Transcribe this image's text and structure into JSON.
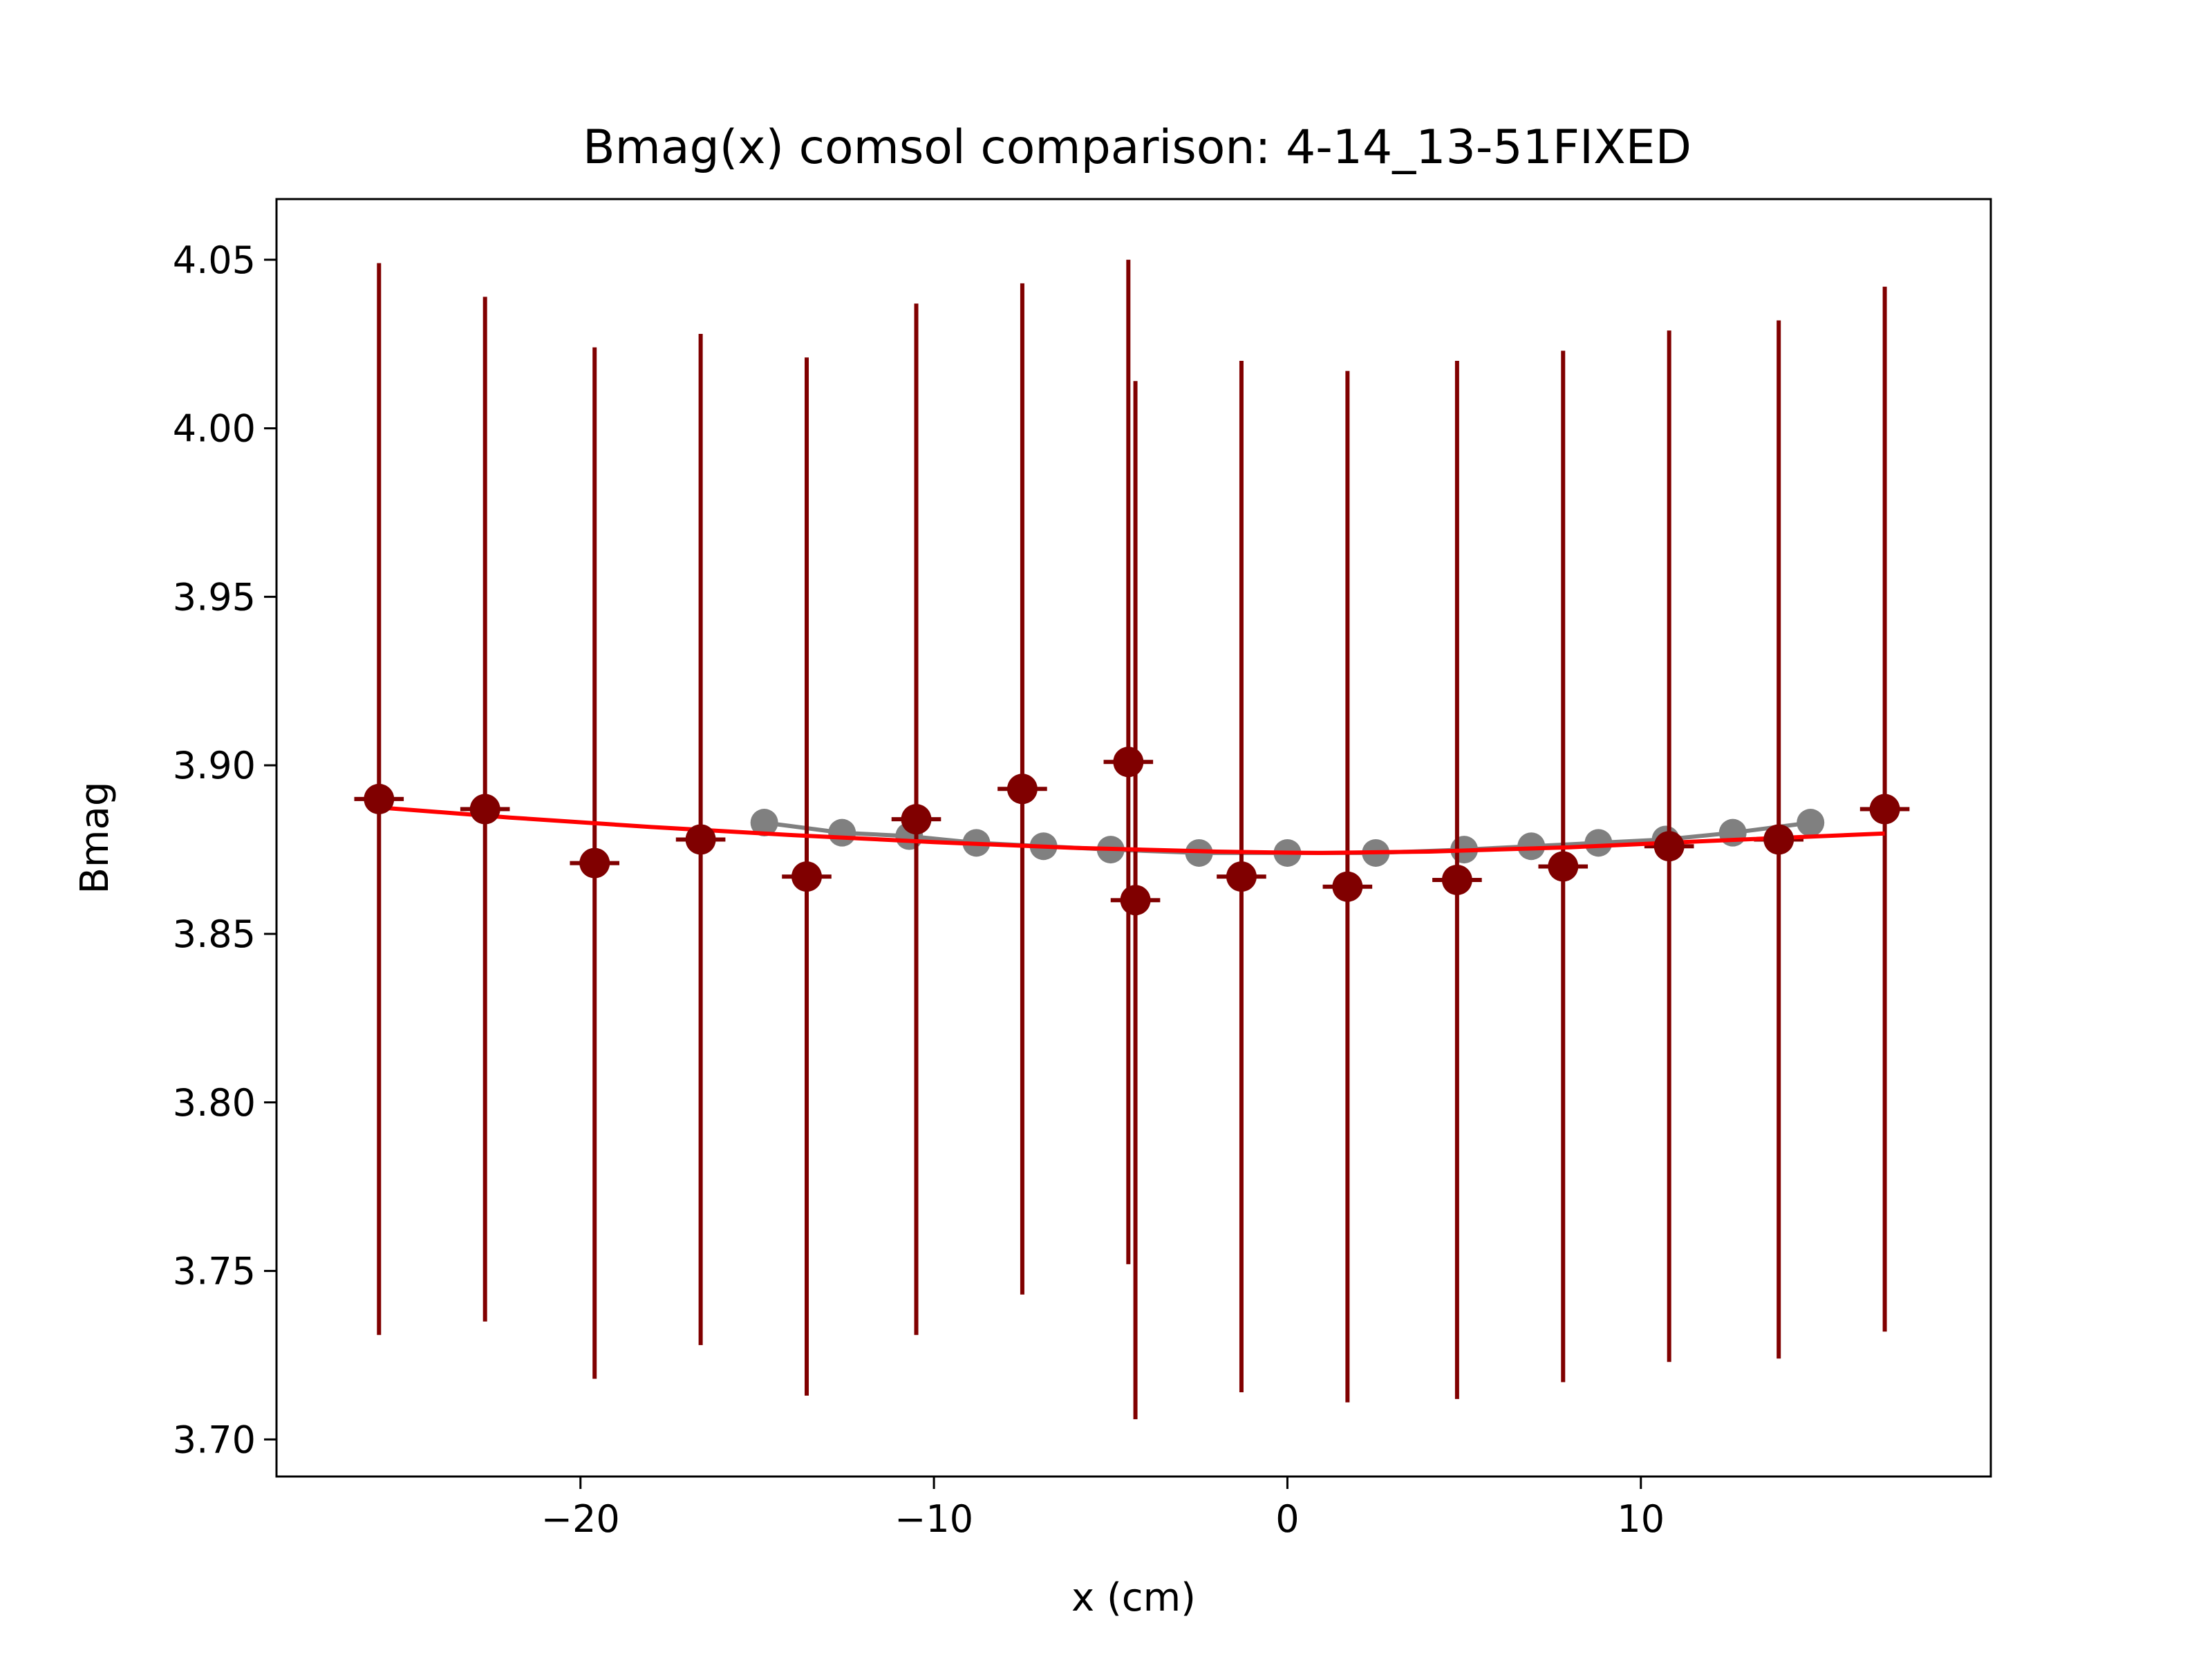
{
  "chart_data": {
    "type": "scatter",
    "title": "Bmag(x) comsol comparison: 4-14_13-51FIXED",
    "xlabel": "x (cm)",
    "ylabel": "Bmag",
    "xlim": [
      -28.6,
      19.9
    ],
    "ylim": [
      3.689,
      4.068
    ],
    "xticks": [
      -20,
      -10,
      0,
      10
    ],
    "xtick_labels": [
      "−20",
      "−10",
      "0",
      "10"
    ],
    "yticks": [
      3.7,
      3.75,
      3.8,
      3.85,
      3.9,
      3.95,
      4.0,
      4.05
    ],
    "ytick_labels": [
      "3.70",
      "3.75",
      "3.80",
      "3.85",
      "3.90",
      "3.95",
      "4.00",
      "4.05"
    ],
    "grid": false,
    "legend": null,
    "series": [
      {
        "kind": "line-with-markers",
        "color": "#808080",
        "x": [
          -14.8,
          -12.6,
          -10.7,
          -8.8,
          -6.9,
          -5.0,
          -2.5,
          0.0,
          2.5,
          5.0,
          6.9,
          8.8,
          10.7,
          12.6,
          14.8
        ],
        "y": [
          3.883,
          3.88,
          3.879,
          3.877,
          3.876,
          3.875,
          3.874,
          3.874,
          3.874,
          3.875,
          3.876,
          3.877,
          3.878,
          3.88,
          3.883
        ]
      },
      {
        "kind": "errorbar",
        "color": "#800000",
        "x": [
          -25.7,
          -22.7,
          -19.6,
          -16.6,
          -13.6,
          -10.5,
          -7.5,
          -4.5,
          -4.3,
          -1.3,
          1.7,
          4.8,
          7.8,
          10.8,
          13.9,
          16.9
        ],
        "y": [
          3.89,
          3.887,
          3.871,
          3.878,
          3.867,
          3.884,
          3.893,
          3.901,
          3.86,
          3.867,
          3.864,
          3.866,
          3.87,
          3.876,
          3.878,
          3.887
        ],
        "xerr": [
          0.7,
          0.7,
          0.7,
          0.7,
          0.7,
          0.7,
          0.7,
          0.7,
          0.7,
          0.7,
          0.7,
          0.7,
          0.7,
          0.7,
          0.7,
          0.7
        ],
        "yerr": [
          0.159,
          0.152,
          0.153,
          0.15,
          0.154,
          0.153,
          0.15,
          0.149,
          0.154,
          0.153,
          0.153,
          0.154,
          0.153,
          0.153,
          0.154,
          0.155
        ]
      },
      {
        "kind": "fit-line",
        "color": "#ff0000",
        "x": [
          -25.7,
          -22,
          -18,
          -14,
          -10,
          -6,
          -2,
          0,
          1,
          4,
          8,
          12,
          16.9
        ],
        "y": [
          3.8875,
          3.8845,
          3.8817,
          3.8793,
          3.8772,
          3.8755,
          3.8744,
          3.8741,
          3.874,
          3.8744,
          3.8757,
          3.8776,
          3.8798
        ]
      }
    ]
  }
}
